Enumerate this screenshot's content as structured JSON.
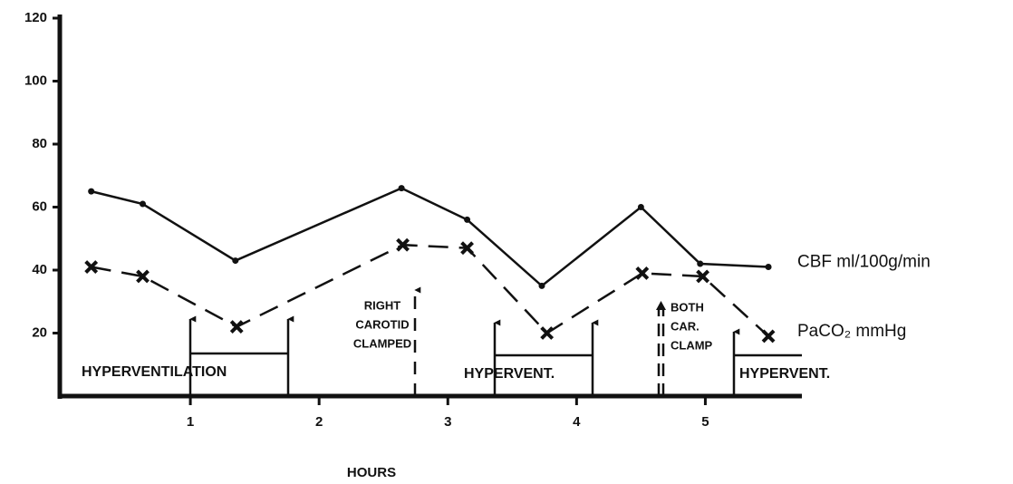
{
  "chart_data": {
    "type": "line",
    "xlabel": "HOURS",
    "xlim": [
      0,
      5.75
    ],
    "xticks": [
      1,
      2,
      3,
      4,
      5
    ],
    "ylim": [
      0,
      120
    ],
    "yticks": [
      20,
      40,
      60,
      80,
      100,
      120
    ],
    "series": [
      {
        "name": "CBF ml/100g/min",
        "color": "#111111",
        "style": "solid",
        "marker": "dot",
        "x": [
          0.23,
          0.63,
          1.35,
          2.64,
          3.15,
          3.73,
          4.5,
          4.96,
          5.49
        ],
        "values": [
          65,
          61,
          43,
          66,
          56,
          35,
          60,
          42,
          41
        ]
      },
      {
        "name": "PaCO₂ mmHg",
        "color": "#111111",
        "style": "dashed",
        "marker": "x",
        "x": [
          0.23,
          0.63,
          1.36,
          2.65,
          3.15,
          3.77,
          4.51,
          4.98,
          5.49
        ],
        "values": [
          41,
          38,
          22,
          48,
          47,
          20,
          39,
          38,
          19
        ]
      }
    ],
    "annotations": {
      "hyperventilation": "HYPERVENTILATION",
      "right_carotid": [
        "RIGHT",
        "CAROTID",
        "CLAMPED"
      ],
      "hypervent_1": "HYPERVENT.",
      "both_car": [
        "BOTH",
        "CAR.",
        "CLAMP"
      ],
      "hypervent_2": "HYPERVENT."
    }
  }
}
